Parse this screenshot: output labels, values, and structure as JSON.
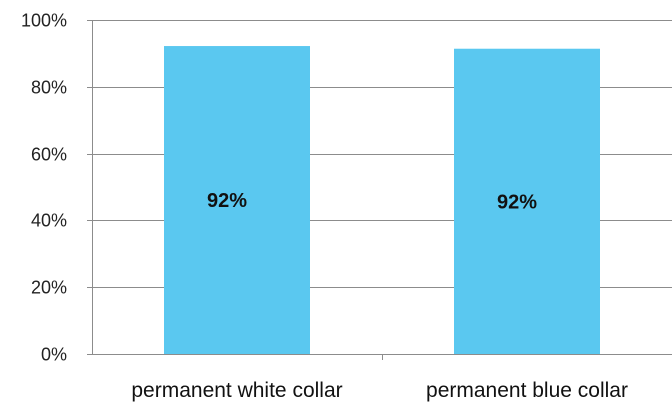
{
  "chart_data": {
    "type": "bar",
    "categories": [
      "permanent white collar",
      "permanent blue collar"
    ],
    "values": [
      92,
      92
    ],
    "plotted_values": [
      92.2,
      91.4
    ],
    "data_labels": [
      "92%",
      "92%"
    ],
    "title": "",
    "xlabel": "",
    "ylabel": "",
    "ylim": [
      0,
      100
    ],
    "yticks": [
      0,
      20,
      40,
      60,
      80,
      100
    ],
    "ytick_labels": [
      "0%",
      "20%",
      "40%",
      "60%",
      "80%",
      "100%"
    ],
    "grid": true,
    "legend": "none",
    "bar_color": "#5ac8f0",
    "grid_color": "#8c8c8c"
  }
}
